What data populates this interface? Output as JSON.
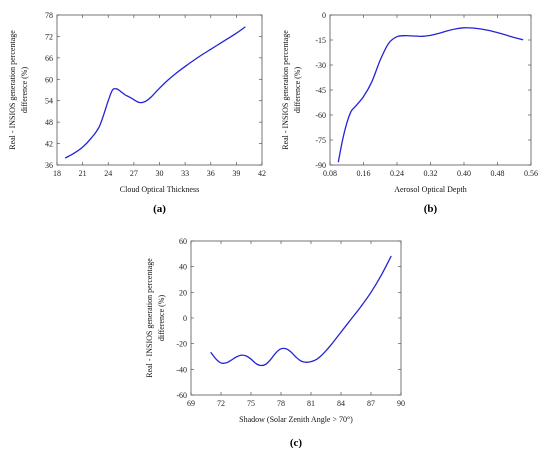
{
  "chart_data": [
    {
      "type": "line",
      "panel_label": "(a)",
      "xlabel": "Cloud Optical Thickness",
      "ylabel": "Real - INSIOS generation percentage difference (%)",
      "xlim": [
        18,
        42
      ],
      "ylim": [
        36,
        78
      ],
      "xticks": [
        18,
        21,
        24,
        27,
        30,
        33,
        36,
        39,
        42
      ],
      "yticks": [
        36,
        42,
        48,
        54,
        60,
        66,
        72,
        78
      ],
      "series": [
        {
          "color": "#2424d6",
          "x": [
            19,
            20,
            21,
            22,
            23,
            24,
            24.5,
            25,
            25.5,
            26,
            26.5,
            27,
            27.5,
            28,
            28.5,
            29,
            30,
            31,
            32,
            33,
            34,
            35,
            36,
            37,
            38,
            39,
            40
          ],
          "y": [
            38,
            39.3,
            41,
            43.5,
            47,
            54,
            57,
            57.3,
            56.5,
            55.6,
            55,
            54.3,
            53.6,
            53.5,
            54,
            55,
            57.5,
            59.8,
            61.8,
            63.6,
            65.3,
            66.9,
            68.4,
            69.9,
            71.4,
            72.9,
            74.6
          ]
        }
      ]
    },
    {
      "type": "line",
      "panel_label": "(b)",
      "xlabel": "Aerosol Optical Depth",
      "ylabel": "Real - INSIOS generation percentage difference (%)",
      "xlim": [
        0.08,
        0.56
      ],
      "ylim": [
        -90,
        0
      ],
      "xticks": [
        0.08,
        0.16,
        0.24,
        0.32,
        0.4,
        0.48,
        0.56
      ],
      "xtick_labels": [
        "0.08",
        "0.16",
        "0.24",
        "0.32",
        "0.40",
        "0.48",
        "0.56"
      ],
      "yticks": [
        -90,
        -75,
        -60,
        -45,
        -30,
        -15,
        0
      ],
      "series": [
        {
          "color": "#2424d6",
          "x": [
            0.1,
            0.11,
            0.12,
            0.13,
            0.14,
            0.16,
            0.18,
            0.2,
            0.22,
            0.24,
            0.26,
            0.28,
            0.3,
            0.32,
            0.34,
            0.36,
            0.38,
            0.4,
            0.42,
            0.44,
            0.46,
            0.48,
            0.5,
            0.52,
            0.54
          ],
          "y": [
            -88,
            -75,
            -65,
            -58,
            -55,
            -49,
            -40,
            -27,
            -17,
            -13,
            -12.4,
            -12.6,
            -12.8,
            -12.2,
            -11,
            -9.5,
            -8.3,
            -7.7,
            -7.8,
            -8.4,
            -9.3,
            -10.6,
            -12,
            -13.5,
            -14.8
          ]
        }
      ]
    },
    {
      "type": "line",
      "panel_label": "(c)",
      "xlabel": "Shadow (Solar Zenith Angle > 70°)",
      "ylabel": "Real - INSIOS generation percentage difference (%)",
      "xlim": [
        69,
        90
      ],
      "ylim": [
        -60,
        60
      ],
      "xticks": [
        69,
        72,
        75,
        78,
        81,
        84,
        87,
        90
      ],
      "yticks": [
        -60,
        -40,
        -20,
        0,
        20,
        40,
        60
      ],
      "series": [
        {
          "color": "#2424d6",
          "x": [
            71,
            71.5,
            72,
            72.5,
            73,
            73.5,
            74,
            74.5,
            75,
            75.5,
            76,
            76.5,
            77,
            77.5,
            78,
            78.5,
            79,
            79.5,
            80,
            80.5,
            81,
            81.5,
            82,
            82.5,
            83,
            84,
            85,
            86,
            87,
            88,
            89
          ],
          "y": [
            -27,
            -32,
            -35,
            -35,
            -33,
            -30.5,
            -29,
            -29.5,
            -32,
            -35.5,
            -37,
            -36,
            -32,
            -27,
            -24,
            -24,
            -26.5,
            -30.5,
            -33.5,
            -34.5,
            -34,
            -32.5,
            -29.5,
            -25.5,
            -21,
            -11,
            -1,
            9,
            20,
            33,
            48
          ]
        }
      ]
    }
  ]
}
